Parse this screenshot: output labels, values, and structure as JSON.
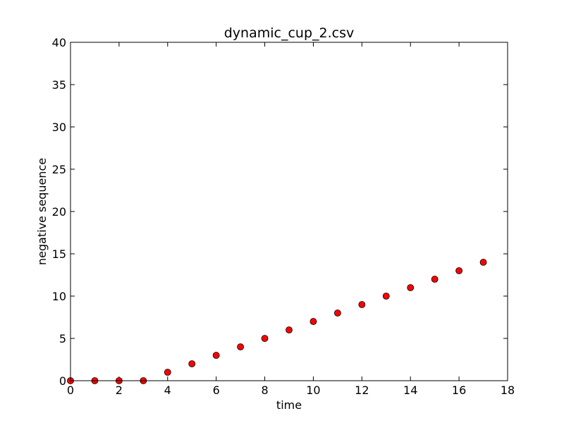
{
  "chart_data": {
    "type": "scatter",
    "title": "dynamic_cup_2.csv",
    "xlabel": "time",
    "ylabel": "negative sequence",
    "xlim": [
      0,
      18
    ],
    "ylim": [
      0,
      40
    ],
    "xticks": [
      0,
      2,
      4,
      6,
      8,
      10,
      12,
      14,
      16,
      18
    ],
    "yticks": [
      0,
      5,
      10,
      15,
      20,
      25,
      30,
      35,
      40
    ],
    "grid": false,
    "legend": "none",
    "marker_color": "#ff0000",
    "marker_edge_color": "#000000",
    "x": [
      0,
      1,
      2,
      3,
      4,
      5,
      6,
      7,
      8,
      9,
      10,
      11,
      12,
      13,
      14,
      15,
      16,
      17
    ],
    "y": [
      0,
      0,
      0,
      0,
      1,
      2,
      3,
      4,
      5,
      6,
      7,
      8,
      9,
      10,
      11,
      12,
      13,
      14
    ]
  }
}
